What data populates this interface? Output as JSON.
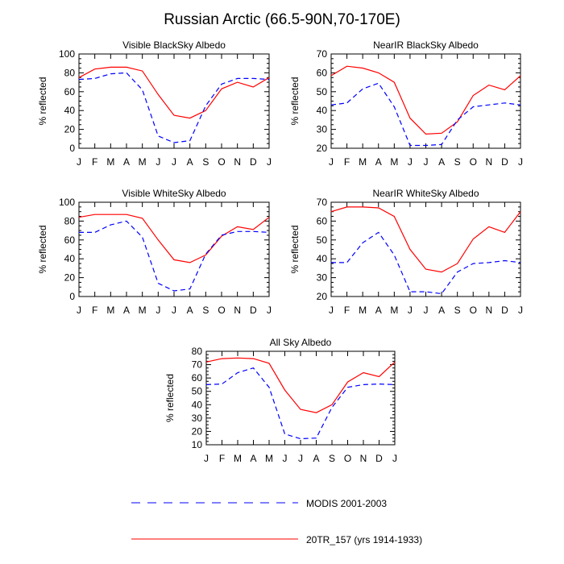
{
  "page": {
    "title": "Russian Arctic (66.5-90N,70-170E)"
  },
  "legend": {
    "entries": [
      {
        "label": "MODIS 2001-2003",
        "color": "#0000ff",
        "style": "dashed"
      },
      {
        "label": "20TR_157 (yrs 1914-1933)",
        "color": "#ff0000",
        "style": "solid"
      }
    ]
  },
  "chart_data": [
    {
      "type": "line",
      "title": "Visible BlackSky Albedo",
      "xlabel": "",
      "ylabel": "% reflected",
      "categories": [
        "J",
        "F",
        "M",
        "A",
        "M",
        "J",
        "J",
        "A",
        "S",
        "O",
        "N",
        "D",
        "J"
      ],
      "ylim": [
        0,
        100
      ],
      "yticks": [
        0,
        20,
        40,
        60,
        80,
        100
      ],
      "series": [
        {
          "name": "20TR_157 (yrs 1914-1933)",
          "color": "#ff0000",
          "style": "solid",
          "values": [
            75,
            84,
            86,
            86,
            82,
            57,
            35,
            32,
            40,
            63,
            70,
            65,
            75
          ]
        },
        {
          "name": "MODIS 2001-2003",
          "color": "#0000ff",
          "style": "dashed",
          "values": [
            73,
            74,
            79,
            80,
            62,
            13,
            6,
            8,
            45,
            68,
            74,
            74,
            73
          ]
        }
      ]
    },
    {
      "type": "line",
      "title": "NearIR BlackSky Albedo",
      "xlabel": "",
      "ylabel": "% reflected",
      "categories": [
        "J",
        "F",
        "M",
        "A",
        "M",
        "J",
        "J",
        "A",
        "S",
        "O",
        "N",
        "D",
        "J"
      ],
      "ylim": [
        20,
        70
      ],
      "yticks": [
        20,
        30,
        40,
        50,
        60,
        70
      ],
      "series": [
        {
          "name": "20TR_157 (yrs 1914-1933)",
          "color": "#ff0000",
          "style": "solid",
          "values": [
            58.5,
            63.5,
            62.5,
            60,
            55,
            36,
            27.5,
            28,
            34,
            48,
            53.5,
            51,
            58.5
          ]
        },
        {
          "name": "MODIS 2001-2003",
          "color": "#0000ff",
          "style": "dashed",
          "values": [
            43,
            44,
            51.5,
            54.5,
            42,
            21.5,
            21.5,
            22,
            35,
            42,
            43,
            44,
            43
          ]
        }
      ]
    },
    {
      "type": "line",
      "title": "Visible WhiteSky Albedo",
      "xlabel": "",
      "ylabel": "% reflected",
      "categories": [
        "J",
        "F",
        "M",
        "A",
        "M",
        "J",
        "J",
        "A",
        "S",
        "O",
        "N",
        "D",
        "J"
      ],
      "ylim": [
        0,
        100
      ],
      "yticks": [
        0,
        20,
        40,
        60,
        80,
        100
      ],
      "series": [
        {
          "name": "20TR_157 (yrs 1914-1933)",
          "color": "#ff0000",
          "style": "solid",
          "values": [
            84,
            87,
            87,
            87,
            83,
            60,
            39,
            36,
            44,
            64,
            74,
            71,
            84
          ]
        },
        {
          "name": "MODIS 2001-2003",
          "color": "#0000ff",
          "style": "dashed",
          "values": [
            68,
            68,
            76,
            80,
            63,
            14,
            6,
            8,
            45,
            65,
            69,
            69,
            68
          ]
        }
      ]
    },
    {
      "type": "line",
      "title": "NearIR WhiteSky Albedo",
      "xlabel": "",
      "ylabel": "% reflected",
      "categories": [
        "J",
        "F",
        "M",
        "A",
        "M",
        "J",
        "J",
        "A",
        "S",
        "O",
        "N",
        "D",
        "J"
      ],
      "ylim": [
        20,
        70
      ],
      "yticks": [
        20,
        30,
        40,
        50,
        60,
        70
      ],
      "series": [
        {
          "name": "20TR_157 (yrs 1914-1933)",
          "color": "#ff0000",
          "style": "solid",
          "values": [
            65,
            67.5,
            67.5,
            67,
            62.5,
            45,
            34.5,
            33,
            37.5,
            50.5,
            57,
            54,
            65
          ]
        },
        {
          "name": "MODIS 2001-2003",
          "color": "#0000ff",
          "style": "dashed",
          "values": [
            38,
            38,
            48.5,
            54,
            42,
            22.5,
            22.5,
            21.5,
            33,
            37.5,
            38,
            39,
            38
          ]
        }
      ]
    },
    {
      "type": "line",
      "title": "All Sky Albedo",
      "xlabel": "",
      "ylabel": "% reflected",
      "categories": [
        "J",
        "F",
        "M",
        "A",
        "M",
        "J",
        "J",
        "A",
        "S",
        "O",
        "N",
        "D",
        "J"
      ],
      "ylim": [
        10,
        80
      ],
      "yticks": [
        10,
        20,
        30,
        40,
        50,
        60,
        70,
        80
      ],
      "series": [
        {
          "name": "20TR_157 (yrs 1914-1933)",
          "color": "#ff0000",
          "style": "solid",
          "values": [
            72,
            74.5,
            75,
            74.5,
            71,
            51,
            36.5,
            34,
            40,
            57,
            64,
            61,
            72
          ]
        },
        {
          "name": "MODIS 2001-2003",
          "color": "#0000ff",
          "style": "dashed",
          "values": [
            55,
            55.5,
            64,
            67.5,
            53,
            18,
            14.5,
            15,
            38,
            53,
            55,
            55.5,
            55
          ]
        }
      ]
    }
  ]
}
